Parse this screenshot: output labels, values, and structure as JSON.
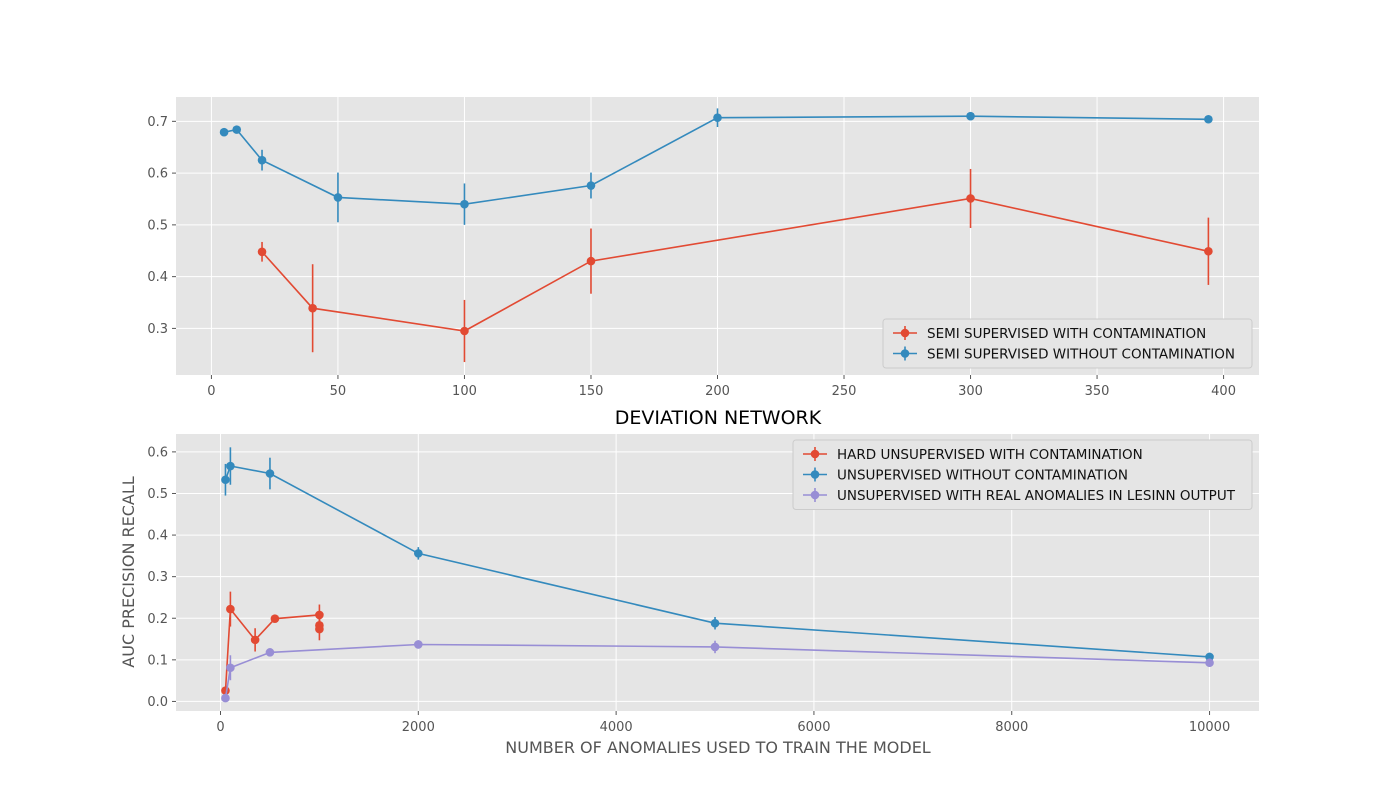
{
  "chart_data": [
    {
      "type": "line",
      "title": "",
      "xlabel": "",
      "ylabel": "",
      "xlim": [
        -14,
        414
      ],
      "ylim": [
        0.21,
        0.747
      ],
      "xticks": [
        0,
        50,
        100,
        150,
        200,
        250,
        300,
        350,
        400
      ],
      "yticks": [
        0.3,
        0.4,
        0.5,
        0.6,
        0.7
      ],
      "xtick_labels": [
        "0",
        "50",
        "100",
        "150",
        "200",
        "250",
        "300",
        "350",
        "400"
      ],
      "ytick_labels": [
        "0.3",
        "0.4",
        "0.5",
        "0.6",
        "0.7"
      ],
      "grid": true,
      "legend_position": "bottom-right",
      "series": [
        {
          "name": "SEMI SUPERVISED WITH CONTAMINATION",
          "color": "#e24a33",
          "x": [
            20,
            40,
            100,
            150,
            300,
            394
          ],
          "y": [
            0.448,
            0.339,
            0.295,
            0.43,
            0.551,
            0.449
          ],
          "err": [
            0.019,
            0.085,
            0.06,
            0.063,
            0.057,
            0.065
          ]
        },
        {
          "name": "SEMI SUPERVISED WITHOUT CONTAMINATION",
          "color": "#348abd",
          "x": [
            5,
            10,
            20,
            50,
            100,
            150,
            200,
            300,
            394
          ],
          "y": [
            0.679,
            0.684,
            0.625,
            0.553,
            0.54,
            0.576,
            0.707,
            0.71,
            0.704
          ],
          "err": [
            0.003,
            0.003,
            0.02,
            0.048,
            0.04,
            0.025,
            0.018,
            0.005,
            0.005
          ]
        }
      ]
    },
    {
      "type": "line",
      "title": "DEVIATION NETWORK",
      "xlabel": "NUMBER OF ANOMALIES USED TO TRAIN THE MODEL",
      "ylabel": "AUC PRECISION RECALL",
      "xlim": [
        -450,
        10500
      ],
      "ylim": [
        -0.023,
        0.643
      ],
      "xticks": [
        0,
        2000,
        4000,
        6000,
        8000,
        10000
      ],
      "yticks": [
        0.0,
        0.1,
        0.2,
        0.3,
        0.4,
        0.5,
        0.6
      ],
      "xtick_labels": [
        "0",
        "2000",
        "4000",
        "6000",
        "8000",
        "10000"
      ],
      "ytick_labels": [
        "0.0",
        "0.1",
        "0.2",
        "0.3",
        "0.4",
        "0.5",
        "0.6"
      ],
      "grid": true,
      "legend_position": "top-right",
      "series": [
        {
          "name": "HARD UNSUPERVISED WITH CONTAMINATION",
          "color": "#e24a33",
          "x": [
            50,
            100,
            350,
            550,
            1000,
            1000,
            1000
          ],
          "y": [
            0.026,
            0.222,
            0.148,
            0.199,
            0.208,
            0.183,
            0.174
          ],
          "err": [
            0.005,
            0.042,
            0.028,
            0.005,
            0.025,
            0.012,
            0.027
          ]
        },
        {
          "name": "UNSUPERVISED WITHOUT CONTAMINATION",
          "color": "#348abd",
          "x": [
            50,
            100,
            500,
            2000,
            5000,
            10000
          ],
          "y": [
            0.533,
            0.566,
            0.548,
            0.356,
            0.188,
            0.107
          ],
          "err": [
            0.038,
            0.045,
            0.038,
            0.015,
            0.015,
            0.01
          ]
        },
        {
          "name": "UNSUPERVISED WITH REAL ANOMALIES IN LESINN OUTPUT",
          "color": "#988ed5",
          "x": [
            50,
            100,
            500,
            2000,
            5000,
            10000
          ],
          "y": [
            0.008,
            0.081,
            0.118,
            0.137,
            0.131,
            0.093
          ],
          "err": [
            0.005,
            0.03,
            0.005,
            0.01,
            0.015,
            0.01
          ]
        }
      ]
    }
  ]
}
